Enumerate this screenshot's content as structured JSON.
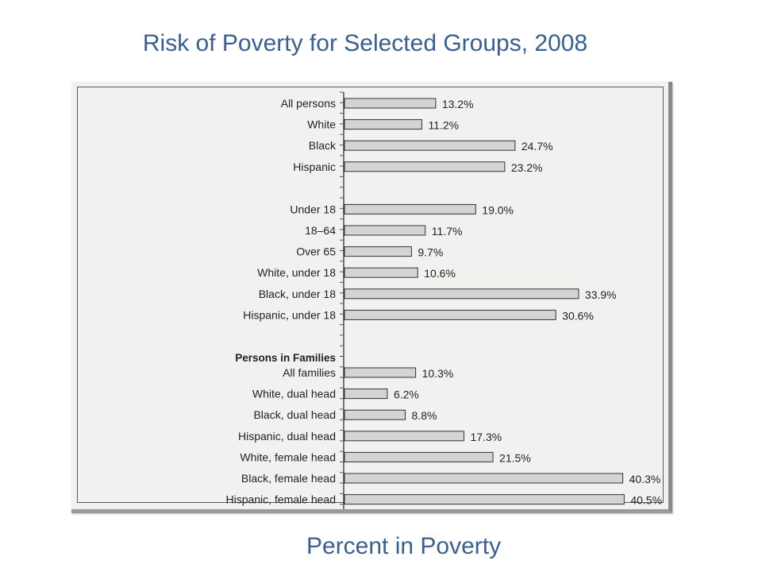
{
  "chart_data": {
    "type": "bar",
    "orientation": "horizontal",
    "title": "Risk of Poverty for Selected Groups, 2008",
    "xlabel": "Percent in Poverty",
    "ylabel": "",
    "xlim": [
      0,
      50
    ],
    "value_suffix": "%",
    "groups": [
      {
        "heading": "",
        "categories": [
          "All persons",
          "White",
          "Black",
          "Hispanic"
        ],
        "values": [
          13.2,
          11.2,
          24.7,
          23.2
        ],
        "labels": [
          "13.2%",
          "11.2%",
          "24.7%",
          "23.2%"
        ]
      },
      {
        "heading": "",
        "categories": [
          "Under 18",
          "18–64",
          "Over 65",
          "White, under 18",
          "Black, under 18",
          "Hispanic, under 18"
        ],
        "values": [
          19.0,
          11.7,
          9.7,
          10.6,
          33.9,
          30.6
        ],
        "labels": [
          "19.0%",
          "11.7%",
          "9.7%",
          "10.6%",
          "33.9%",
          "30.6%"
        ]
      },
      {
        "heading": "Persons in Families",
        "categories": [
          "All families",
          "White, dual head",
          "Black, dual head",
          "Hispanic, dual head",
          "White, female head",
          "Black, female head",
          "Hispanic, female head"
        ],
        "values": [
          10.3,
          6.2,
          8.8,
          17.3,
          21.5,
          40.3,
          40.5
        ],
        "labels": [
          "10.3%",
          "6.2%",
          "8.8%",
          "17.3%",
          "21.5%",
          "40.3%",
          "40.5%"
        ]
      }
    ],
    "grid": false,
    "legend": "none",
    "bar_color": "#d4d4d4",
    "bar_stroke": "#333333"
  }
}
